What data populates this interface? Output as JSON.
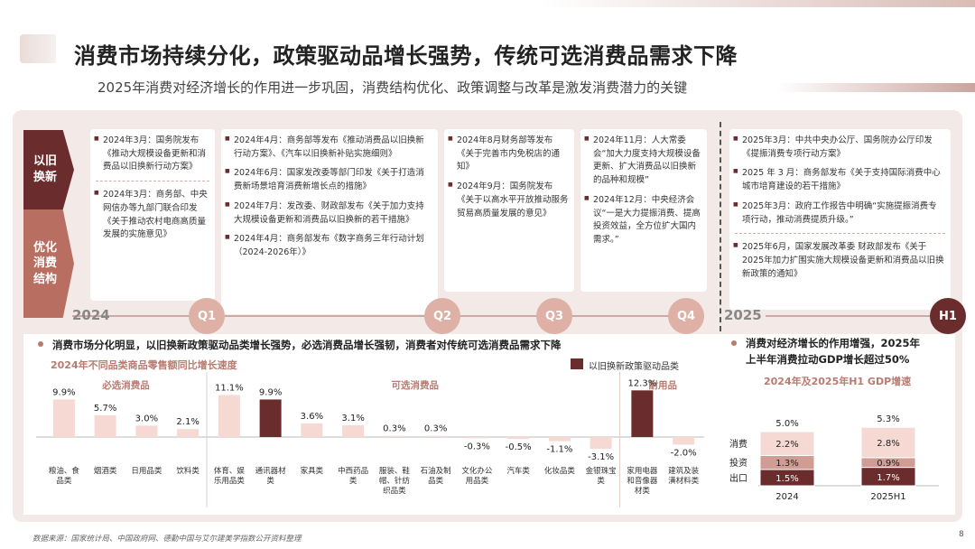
{
  "header": {
    "title": "消费市场持续分化，政策驱动品增长强势，传统可选消费品需求下降",
    "subtitle": "2025年消费对经济增长的作用进一步巩固，消费结构优化、政策调整与改革是激发消费潜力的关键"
  },
  "timeline": {
    "label_old": "以旧\n换新",
    "label_opt": "优化\n消费\n结构",
    "year_2024": "2024",
    "year_2025": "2025",
    "markers": [
      "Q1",
      "Q2",
      "Q3",
      "Q4",
      "H1"
    ],
    "q1_top": [
      "2024年3月：国务院发布《推动大规模设备更新和消费品以旧换新行动方案》"
    ],
    "q1_bottom": [
      "2024年3月：商务部、中央网信办等九部门联合印发《关于推动农村电商高质量发展的实施意见》"
    ],
    "q1q2": [
      "2024年4月：商务部等发布《推动消费品以旧换新行动方案》、《汽车以旧换新补贴实施细则》",
      "2024年6月：国家发改委等部门印发《关于打造消费新场景培育消费新增长点的措施》",
      "2024年7月：发改委、财政部发布《关于加力支持大规模设备更新和消费品以旧换新的若干措施》",
      "2024年4月：商务部发布《数字商务三年行动计划（2024-2026年）》"
    ],
    "q2q3": [
      "2024年8月财务部等发布《关于完善市内免税店的通知》",
      "2024年9月：国务院发布《关于以高水平开放推动服务贸易高质量发展的意见》"
    ],
    "q3q4": [
      "2024年11月：人大常委会“加大力度支持大规模设备更新、扩大消费品以旧换新的品种和规模”",
      "2024年12月：中央经济会议“一是大力提振消费、提高投资效益，全方位扩大国内需求。”"
    ],
    "h1": [
      "2025年3月：中共中央办公厅、国务院办公厅印发《提振消费专项行动方案》",
      "2025 年 3 月：商务部发布《关于支持国际消费中心城市培育建设的若干措施》",
      "2025年3月：政府工作报告中明确“实施提振消费专项行动，推动消费提质升级。”",
      "2025年6月，国家发展改革委 财政部发布《关于2025年加力扩围实施大规模设备更新和消费品以旧换新政策的通知》"
    ]
  },
  "bottom": {
    "headline_left": "消费市场分化明显，以旧换新政策驱动品类增长强势，必选消费品增长强韧，消费者对传统可选消费品需求下降",
    "headline_right_1": "消费对经济增长的作用增强，2025年",
    "headline_right_2": "上半年消费拉动GDP增长超过50%",
    "left_chart_title": "2024年不同品类商品零售额同比增长速度",
    "legend": "以旧换新政策驱动品类",
    "group_essential": "必选消费品",
    "group_optional": "可选消费品",
    "group_durable": "耐用品",
    "right_chart_title": "2024年及2025年H1 GDP增速",
    "footer": "数据来源：国家统计局、中国政府网、德勤中国与艾尔建美学指数公开资料整理",
    "page": "8"
  },
  "chart_data": [
    {
      "type": "bar",
      "title": "2024年不同品类商品零售额同比增长速度",
      "categories": [
        "粮油、食品类",
        "烟酒类",
        "日用品类",
        "饮料类",
        "体育、娱乐用品类",
        "通讯器材类",
        "家具类",
        "中西药品类",
        "服装、鞋帽、针纺织品类",
        "石油及制品类",
        "文化办公用品类",
        "汽车类",
        "化妆品类",
        "金银珠宝类",
        "家用电器和音像器材类",
        "建筑及装潢材料类"
      ],
      "values": [
        9.9,
        5.7,
        3.0,
        2.1,
        11.1,
        9.9,
        3.6,
        3.1,
        0.3,
        0.3,
        -0.3,
        -0.5,
        -1.1,
        -3.1,
        12.3,
        -2.0
      ],
      "labels": [
        "9.9%",
        "5.7%",
        "3.0%",
        "2.1%",
        "11.1%",
        "9.9%",
        "3.6%",
        "3.1%",
        "0.3%",
        "0.3%",
        "-0.3%",
        "-0.5%",
        "-1.1%",
        "-3.1%",
        "12.3%",
        "-2.0%"
      ],
      "highlight": [
        false,
        false,
        false,
        false,
        false,
        true,
        false,
        false,
        false,
        false,
        false,
        false,
        false,
        false,
        true,
        false
      ],
      "groups": [
        {
          "name": "必选消费品",
          "from": 0,
          "to": 3
        },
        {
          "name": "可选消费品",
          "from": 4,
          "to": 13
        },
        {
          "name": "耐用品",
          "from": 14,
          "to": 15
        }
      ],
      "colors": {
        "normal": "#f6d9d3",
        "highlight": "#6a2c2c"
      }
    },
    {
      "type": "bar",
      "stacked": true,
      "title": "2024年及2025年H1 GDP增速",
      "categories": [
        "2024",
        "2025H1"
      ],
      "totals": [
        "5.0%",
        "5.3%"
      ],
      "series": [
        {
          "name": "出口",
          "values": [
            1.5,
            1.7
          ],
          "labels": [
            "1.5%",
            "1.7%"
          ],
          "color": "#6a2c2c"
        },
        {
          "name": "投资",
          "values": [
            1.3,
            0.9
          ],
          "labels": [
            "1.3%",
            "0.9%"
          ],
          "color": "#cf9d93"
        },
        {
          "name": "消费",
          "values": [
            2.2,
            2.8
          ],
          "labels": [
            "2.2%",
            "2.8%"
          ],
          "color": "#f6d9d3"
        }
      ]
    }
  ]
}
